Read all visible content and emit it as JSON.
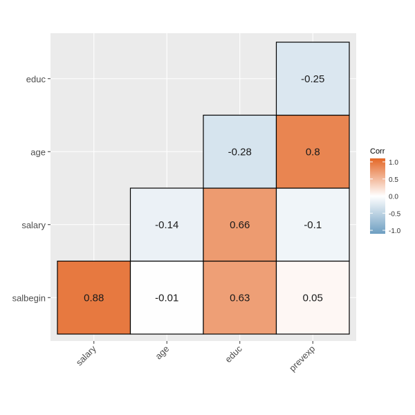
{
  "chart_data": {
    "type": "heatmap",
    "x_categories": [
      "salary",
      "age",
      "educ",
      "prevexp"
    ],
    "y_categories": [
      "salbegin",
      "salary",
      "age",
      "educ"
    ],
    "cells": [
      {
        "x": "salary",
        "y": "salbegin",
        "value": 0.88,
        "label": "0.88"
      },
      {
        "x": "age",
        "y": "salbegin",
        "value": -0.01,
        "label": "-0.01"
      },
      {
        "x": "educ",
        "y": "salbegin",
        "value": 0.63,
        "label": "0.63"
      },
      {
        "x": "prevexp",
        "y": "salbegin",
        "value": 0.05,
        "label": "0.05"
      },
      {
        "x": "age",
        "y": "salary",
        "value": -0.14,
        "label": "-0.14"
      },
      {
        "x": "educ",
        "y": "salary",
        "value": 0.66,
        "label": "0.66"
      },
      {
        "x": "prevexp",
        "y": "salary",
        "value": -0.1,
        "label": "-0.1"
      },
      {
        "x": "educ",
        "y": "age",
        "value": -0.28,
        "label": "-0.28"
      },
      {
        "x": "prevexp",
        "y": "age",
        "value": 0.8,
        "label": "0.8"
      },
      {
        "x": "prevexp",
        "y": "educ",
        "value": -0.25,
        "label": "-0.25"
      }
    ],
    "legend": {
      "title": "Corr",
      "range": [
        -1,
        1
      ],
      "ticks": [
        "1.0",
        "0.5",
        "0.0",
        "-0.5",
        "-1.0"
      ],
      "tick_values": [
        1,
        0.5,
        0,
        -0.5,
        -1
      ],
      "placement": "right"
    },
    "colors": {
      "low": "#6D9EC1",
      "mid": "#FFFFFF",
      "high": "#E46726",
      "panel": "#EBEBEB",
      "grid": "#FFFFFF"
    },
    "grid": true
  }
}
